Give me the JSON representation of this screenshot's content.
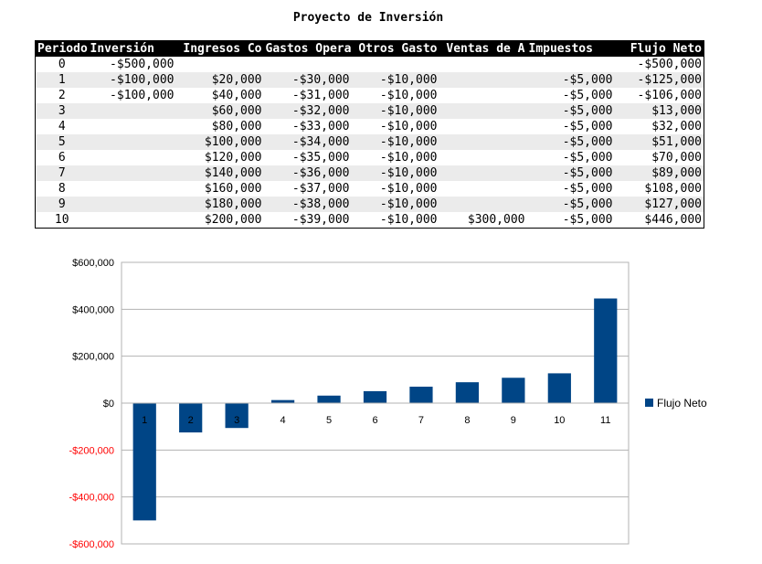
{
  "title": "Proyecto de Inversión",
  "table": {
    "columns": [
      "Periodo",
      "Inversión",
      "Ingresos Co",
      "Gastos Opera",
      "Otros Gasto",
      "Ventas de A",
      "Impuestos",
      "Flujo Neto"
    ],
    "rows": [
      [
        "0",
        "-$500,000",
        "",
        "",
        "",
        "",
        "",
        "-$500,000"
      ],
      [
        "1",
        "-$100,000",
        "$20,000",
        "-$30,000",
        "-$10,000",
        "",
        "-$5,000",
        "-$125,000"
      ],
      [
        "2",
        "-$100,000",
        "$40,000",
        "-$31,000",
        "-$10,000",
        "",
        "-$5,000",
        "-$106,000"
      ],
      [
        "3",
        "",
        "$60,000",
        "-$32,000",
        "-$10,000",
        "",
        "-$5,000",
        "$13,000"
      ],
      [
        "4",
        "",
        "$80,000",
        "-$33,000",
        "-$10,000",
        "",
        "-$5,000",
        "$32,000"
      ],
      [
        "5",
        "",
        "$100,000",
        "-$34,000",
        "-$10,000",
        "",
        "-$5,000",
        "$51,000"
      ],
      [
        "6",
        "",
        "$120,000",
        "-$35,000",
        "-$10,000",
        "",
        "-$5,000",
        "$70,000"
      ],
      [
        "7",
        "",
        "$140,000",
        "-$36,000",
        "-$10,000",
        "",
        "-$5,000",
        "$89,000"
      ],
      [
        "8",
        "",
        "$160,000",
        "-$37,000",
        "-$10,000",
        "",
        "-$5,000",
        "$108,000"
      ],
      [
        "9",
        "",
        "$180,000",
        "-$38,000",
        "-$10,000",
        "",
        "-$5,000",
        "$127,000"
      ],
      [
        "10",
        "",
        "$200,000",
        "-$39,000",
        "-$10,000",
        "$300,000",
        "-$5,000",
        "$446,000"
      ]
    ]
  },
  "chart_data": {
    "type": "bar",
    "categories": [
      "1",
      "2",
      "3",
      "4",
      "5",
      "6",
      "7",
      "8",
      "9",
      "10",
      "11"
    ],
    "series": [
      {
        "name": "Flujo Neto",
        "values": [
          -500000,
          -125000,
          -106000,
          13000,
          32000,
          51000,
          70000,
          89000,
          108000,
          127000,
          446000
        ]
      }
    ],
    "ylim": [
      -600000,
      600000
    ],
    "yticks": [
      600000,
      400000,
      200000,
      0,
      -200000,
      -400000,
      -600000
    ],
    "ytick_labels": [
      "$600,000",
      "$400,000",
      "$200,000",
      "$0",
      "-$200,000",
      "-$400,000",
      "-$600,000"
    ],
    "grid": true,
    "legend": "right",
    "bar_color": "#004586",
    "negative_label_color": "#ff0000",
    "xlabel": "",
    "ylabel": ""
  }
}
